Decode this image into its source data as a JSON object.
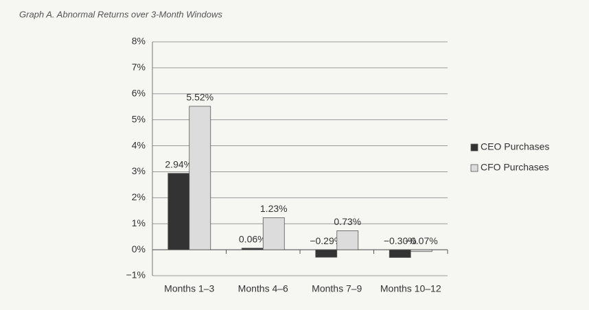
{
  "chart_data": {
    "type": "bar",
    "title": "Graph A. Abnormal Returns over 3-Month Windows",
    "categories": [
      "Months 1–3",
      "Months 4–6",
      "Months 7–9",
      "Months 10–12"
    ],
    "series": [
      {
        "name": "CEO Purchases",
        "color": "#333333",
        "values": [
          2.94,
          0.06,
          -0.29,
          -0.3
        ],
        "value_labels": [
          "2.94%",
          "0.06%",
          "−0.29%",
          "−0.30%"
        ]
      },
      {
        "name": "CFO Purchases",
        "color": "#dcdcdc",
        "values": [
          5.52,
          1.23,
          0.73,
          -0.07
        ],
        "value_labels": [
          "5.52%",
          "1.23%",
          "0.73%",
          "−0.07%"
        ]
      }
    ],
    "ylim": [
      -1,
      8
    ],
    "yticks": [
      {
        "value": -1,
        "label": "−1%"
      },
      {
        "value": 0,
        "label": "0%"
      },
      {
        "value": 1,
        "label": "1%"
      },
      {
        "value": 2,
        "label": "2%"
      },
      {
        "value": 3,
        "label": "3%"
      },
      {
        "value": 4,
        "label": "4%"
      },
      {
        "value": 5,
        "label": "5%"
      },
      {
        "value": 6,
        "label": "6%"
      },
      {
        "value": 7,
        "label": "7%"
      },
      {
        "value": 8,
        "label": "8%"
      }
    ],
    "grid": true,
    "legend": "right"
  }
}
